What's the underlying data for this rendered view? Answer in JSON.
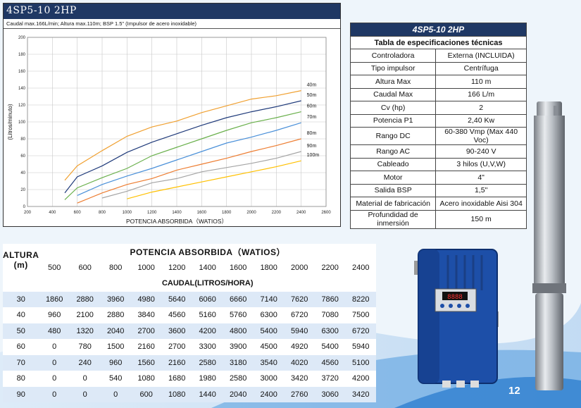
{
  "chart": {
    "header": "4SP5-10   2HP",
    "subtitle": "Caudal max.166L/min;  Altura max.110m; BSP 1.5\" (Impulsor de acero inoxidable)"
  },
  "chart_data": {
    "type": "line",
    "title": "",
    "xlabel": "POTENCIA ABSORBIDA（WATIOS）",
    "ylabel": "(Litros/minuto)",
    "xlim": [
      200,
      2600
    ],
    "ylim": [
      0,
      200
    ],
    "x_ticks": [
      200,
      400,
      600,
      800,
      1000,
      1200,
      1400,
      1600,
      1800,
      2000,
      2200,
      2400,
      2600
    ],
    "y_ticks": [
      0,
      20,
      40,
      60,
      80,
      100,
      120,
      140,
      160,
      180,
      200
    ],
    "grid": true,
    "series": [
      {
        "name": "40m",
        "color": "#f0a030",
        "x": [
          500,
          600,
          800,
          1000,
          1200,
          1400,
          1600,
          1800,
          2000,
          2200,
          2400
        ],
        "y": [
          31,
          48,
          66,
          83,
          94,
          101,
          111,
          119,
          127,
          131,
          137
        ]
      },
      {
        "name": "50m",
        "color": "#1f3a7a",
        "x": [
          500,
          600,
          800,
          1000,
          1200,
          1400,
          1600,
          1800,
          2000,
          2200,
          2400
        ],
        "y": [
          16,
          35,
          48,
          64,
          76,
          86,
          96,
          105,
          112,
          118,
          125
        ]
      },
      {
        "name": "60m",
        "color": "#6ab04c",
        "x": [
          500,
          600,
          800,
          1000,
          1200,
          1400,
          1600,
          1800,
          2000,
          2200,
          2400
        ],
        "y": [
          8,
          22,
          34,
          45,
          60,
          70,
          80,
          90,
          99,
          105,
          112
        ]
      },
      {
        "name": "70m",
        "color": "#4a90d9",
        "x": [
          600,
          800,
          1000,
          1200,
          1400,
          1600,
          1800,
          2000,
          2200,
          2400
        ],
        "y": [
          13,
          26,
          36,
          45,
          55,
          65,
          75,
          82,
          90,
          99
        ]
      },
      {
        "name": "80m",
        "color": "#ed7d31",
        "x": [
          600,
          800,
          1000,
          1200,
          1400,
          1600,
          1800,
          2000,
          2200,
          2400
        ],
        "y": [
          4,
          16,
          26,
          33,
          43,
          50,
          57,
          65,
          72,
          80
        ]
      },
      {
        "name": "90m",
        "color": "#a5a5a5",
        "x": [
          800,
          1000,
          1200,
          1400,
          1600,
          1800,
          2000,
          2200,
          2400
        ],
        "y": [
          10,
          18,
          28,
          33,
          41,
          46,
          51,
          57,
          65
        ]
      },
      {
        "name": "100m",
        "color": "#ffc000",
        "x": [
          1000,
          1200,
          1400,
          1600,
          1800,
          2000,
          2200,
          2400
        ],
        "y": [
          9,
          17,
          23,
          29,
          35,
          41,
          47,
          54
        ]
      }
    ]
  },
  "spec": {
    "model": "4SP5-10 2HP",
    "title": "Tabla de especificaciones técnicas",
    "rows": [
      {
        "k": "Controladora",
        "v": "Externa (INCLUIDA)"
      },
      {
        "k": "Tipo impulsor",
        "v": "Centrífuga"
      },
      {
        "k": "Altura Max",
        "v": "110 m"
      },
      {
        "k": "Caudal Max",
        "v": "166 L/m"
      },
      {
        "k": "Cv (hp)",
        "v": "2"
      },
      {
        "k": "Potencia P1",
        "v": "2,40 Kw"
      },
      {
        "k": "Rango DC",
        "v": "60-380 Vmp (Max 440 Voc)"
      },
      {
        "k": "Rango AC",
        "v": "90-240 V"
      },
      {
        "k": "Cableado",
        "v": "3 hilos (U,V,W)"
      },
      {
        "k": "Motor",
        "v": "4\""
      },
      {
        "k": "Salida BSP",
        "v": "1,5\""
      },
      {
        "k": "Material de fabricación",
        "v": "Acero inoxidable Aisi 304"
      },
      {
        "k": "Profundidad de inmersión",
        "v": "150 m"
      }
    ]
  },
  "table": {
    "altura_label": "ALTURA",
    "altura_unit": "(m)",
    "power_title": "POTENCIA ABSORBIDA（WATIOS）",
    "flow_title": "CAUDAL(LITROS/HORA)",
    "powers": [
      "500",
      "600",
      "800",
      "1000",
      "1200",
      "1400",
      "1600",
      "1800",
      "2000",
      "2200",
      "2400"
    ],
    "rows": [
      {
        "h": "30",
        "v": [
          "1860",
          "2880",
          "3960",
          "4980",
          "5640",
          "6060",
          "6660",
          "7140",
          "7620",
          "7860",
          "8220"
        ]
      },
      {
        "h": "40",
        "v": [
          "960",
          "2100",
          "2880",
          "3840",
          "4560",
          "5160",
          "5760",
          "6300",
          "6720",
          "7080",
          "7500"
        ]
      },
      {
        "h": "50",
        "v": [
          "480",
          "1320",
          "2040",
          "2700",
          "3600",
          "4200",
          "4800",
          "5400",
          "5940",
          "6300",
          "6720"
        ]
      },
      {
        "h": "60",
        "v": [
          "0",
          "780",
          "1500",
          "2160",
          "2700",
          "3300",
          "3900",
          "4500",
          "4920",
          "5400",
          "5940"
        ]
      },
      {
        "h": "70",
        "v": [
          "0",
          "240",
          "960",
          "1560",
          "2160",
          "2580",
          "3180",
          "3540",
          "4020",
          "4560",
          "5100"
        ]
      },
      {
        "h": "80",
        "v": [
          "0",
          "0",
          "540",
          "1080",
          "1680",
          "1980",
          "2580",
          "3000",
          "3420",
          "3720",
          "4200"
        ]
      },
      {
        "h": "90",
        "v": [
          "0",
          "0",
          "0",
          "600",
          "1080",
          "1440",
          "2040",
          "2400",
          "2760",
          "3060",
          "3420"
        ]
      }
    ]
  },
  "controller": {
    "display": "8888"
  },
  "page_number": "12"
}
